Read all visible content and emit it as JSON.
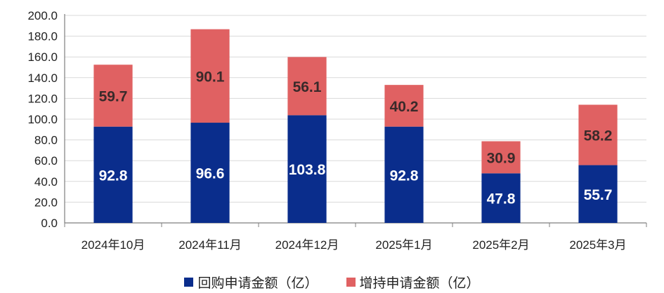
{
  "chart_data": {
    "type": "bar",
    "stacked": true,
    "categories": [
      "2024年10月",
      "2024年11月",
      "2024年12月",
      "2025年1月",
      "2025年2月",
      "2025年3月"
    ],
    "series": [
      {
        "name": "回购申请金额（亿）",
        "color": "#0a2d8c",
        "values": [
          92.8,
          96.6,
          103.8,
          92.8,
          47.8,
          55.7
        ],
        "labels": [
          "92.8",
          "96.6",
          "103.8",
          "92.8",
          "47.8",
          "55.7"
        ]
      },
      {
        "name": "增持申请金额（亿）",
        "color": "#e06162",
        "values": [
          59.7,
          90.1,
          56.1,
          40.2,
          30.9,
          58.2
        ],
        "labels": [
          "59.7",
          "90.1",
          "56.1",
          "40.2",
          "30.9",
          "58.2"
        ]
      }
    ],
    "yticks": [
      "0.0",
      "20.0",
      "40.0",
      "60.0",
      "80.0",
      "100.0",
      "120.0",
      "140.0",
      "160.0",
      "180.0",
      "200.0"
    ],
    "ylim": [
      0,
      200
    ],
    "grid": true,
    "legend_position": "bottom",
    "title": "",
    "xlabel": "",
    "ylabel": ""
  }
}
